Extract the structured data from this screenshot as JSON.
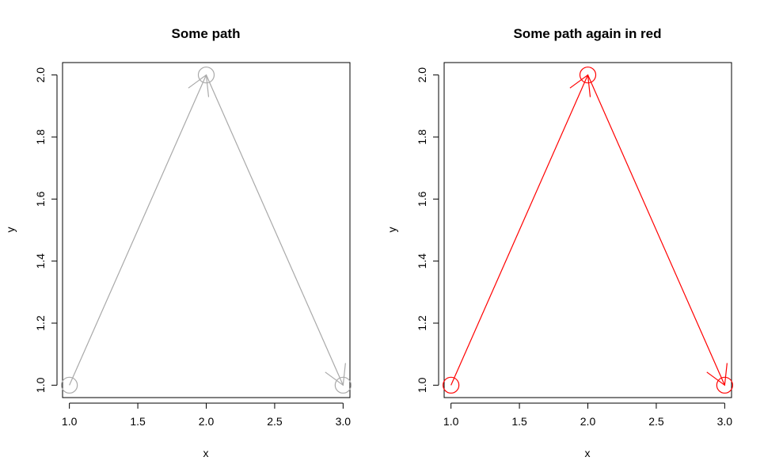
{
  "chart_data": [
    {
      "type": "line",
      "title": "Some path",
      "xlabel": "x",
      "ylabel": "y",
      "color": "#A9A9A9",
      "xlim": [
        0.95,
        3.05
      ],
      "ylim": [
        0.96,
        2.04
      ],
      "xticks": [
        "1.0",
        "1.5",
        "2.0",
        "2.5",
        "3.0"
      ],
      "yticks": [
        "1.0",
        "1.2",
        "1.4",
        "1.6",
        "1.8",
        "2.0"
      ],
      "series": [
        {
          "x": [
            1,
            2,
            3
          ],
          "y": [
            1,
            2,
            1
          ]
        }
      ],
      "markers": "open-circle",
      "arrows": true
    },
    {
      "type": "line",
      "title": "Some path again in red",
      "xlabel": "x",
      "ylabel": "y",
      "color": "#FF0000",
      "xlim": [
        0.95,
        3.05
      ],
      "ylim": [
        0.96,
        2.04
      ],
      "xticks": [
        "1.0",
        "1.5",
        "2.0",
        "2.5",
        "3.0"
      ],
      "yticks": [
        "1.0",
        "1.2",
        "1.4",
        "1.6",
        "1.8",
        "2.0"
      ],
      "series": [
        {
          "x": [
            1,
            2,
            3
          ],
          "y": [
            1,
            2,
            1
          ]
        }
      ],
      "markers": "open-circle",
      "arrows": true
    }
  ]
}
